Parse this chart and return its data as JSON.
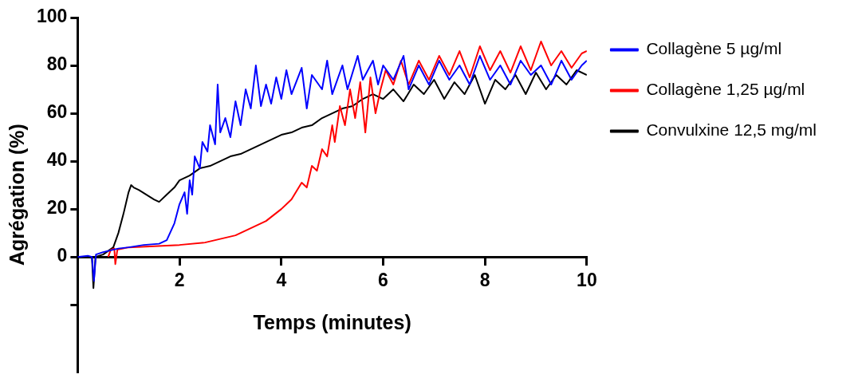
{
  "chart_data": {
    "type": "line",
    "xlabel": "Temps (minutes)",
    "ylabel": "Agrégation (%)",
    "xlim": [
      0,
      10
    ],
    "xticks": [
      2,
      4,
      6,
      8,
      10
    ],
    "ylim": [
      -48,
      100
    ],
    "yticks": [
      {
        "value": -20,
        "label": null
      },
      0,
      20,
      40,
      60,
      80,
      100
    ],
    "grid": false,
    "legend": "top right",
    "marker": "none",
    "line_style": "solid",
    "series": [
      {
        "name": "Collagène 5 µg/ml",
        "color": "#0000ff",
        "x": [
          0,
          0.2,
          0.28,
          0.32,
          0.36,
          0.5,
          0.8,
          1.0,
          1.3,
          1.6,
          1.75,
          1.9,
          2.0,
          2.1,
          2.15,
          2.2,
          2.25,
          2.3,
          2.4,
          2.45,
          2.55,
          2.6,
          2.7,
          2.75,
          2.8,
          2.9,
          3.0,
          3.1,
          3.2,
          3.3,
          3.4,
          3.5,
          3.6,
          3.7,
          3.8,
          3.9,
          4.0,
          4.1,
          4.2,
          4.4,
          4.5,
          4.6,
          4.8,
          4.9,
          5.0,
          5.2,
          5.3,
          5.5,
          5.6,
          5.8,
          5.9,
          6.0,
          6.2,
          6.4,
          6.5,
          6.7,
          6.9,
          7.1,
          7.3,
          7.5,
          7.7,
          7.9,
          8.1,
          8.3,
          8.5,
          8.7,
          8.9,
          9.1,
          9.3,
          9.5,
          9.7,
          9.9,
          10.0
        ],
        "values": [
          0,
          0.5,
          0,
          -10,
          1,
          2,
          3.5,
          4,
          5,
          5.5,
          7,
          14,
          22,
          27,
          18,
          32,
          26,
          42,
          37,
          48,
          44,
          55,
          47,
          72,
          52,
          58,
          50,
          65,
          55,
          70,
          62,
          80,
          63,
          72,
          64,
          75,
          66,
          78,
          68,
          79,
          62,
          76,
          70,
          82,
          68,
          80,
          70,
          84,
          74,
          82,
          72,
          80,
          74,
          84,
          70,
          80,
          72,
          82,
          74,
          80,
          72,
          84,
          74,
          80,
          72,
          82,
          76,
          80,
          72,
          82,
          74,
          80,
          82
        ]
      },
      {
        "name": "Collagène 1,25 µg/ml",
        "color": "#ff0000",
        "x": [
          0.6,
          0.65,
          0.72,
          0.74,
          0.78,
          1.0,
          1.5,
          2.0,
          2.5,
          2.8,
          3.1,
          3.4,
          3.7,
          4.0,
          4.2,
          4.4,
          4.5,
          4.6,
          4.7,
          4.8,
          4.9,
          5.0,
          5.05,
          5.15,
          5.25,
          5.35,
          5.45,
          5.55,
          5.65,
          5.75,
          5.85,
          5.95,
          6.05,
          6.2,
          6.35,
          6.5,
          6.7,
          6.9,
          7.1,
          7.3,
          7.5,
          7.7,
          7.9,
          8.1,
          8.3,
          8.5,
          8.7,
          8.9,
          9.1,
          9.3,
          9.5,
          9.7,
          9.9,
          10.0
        ],
        "values": [
          0,
          3,
          3.5,
          -3,
          3,
          4,
          4.5,
          5,
          6,
          7.5,
          9,
          12,
          15,
          20,
          24,
          31,
          29,
          38,
          36,
          45,
          42,
          55,
          48,
          63,
          55,
          70,
          58,
          73,
          52,
          75,
          60,
          70,
          78,
          72,
          82,
          72,
          82,
          74,
          84,
          76,
          86,
          75,
          88,
          78,
          86,
          77,
          88,
          78,
          90,
          80,
          86,
          79,
          85,
          86
        ]
      },
      {
        "name": "Convulxine 12,5 mg/ml",
        "color": "#000000",
        "x": [
          0,
          0.28,
          0.31,
          0.35,
          0.5,
          0.7,
          0.8,
          0.9,
          1.0,
          1.05,
          1.1,
          1.2,
          1.35,
          1.5,
          1.6,
          1.75,
          1.9,
          2.0,
          2.2,
          2.4,
          2.6,
          2.8,
          3.0,
          3.2,
          3.4,
          3.6,
          3.8,
          4.0,
          4.2,
          4.4,
          4.6,
          4.8,
          5.0,
          5.2,
          5.4,
          5.6,
          5.8,
          6.0,
          6.2,
          6.4,
          6.6,
          6.8,
          7.0,
          7.2,
          7.4,
          7.6,
          7.8,
          8.0,
          8.2,
          8.4,
          8.6,
          8.8,
          9.0,
          9.2,
          9.4,
          9.6,
          9.8,
          10.0
        ],
        "values": [
          0,
          0,
          -13,
          0,
          1,
          4,
          10,
          18,
          27,
          30,
          29,
          28,
          26,
          24,
          23,
          26,
          29,
          32,
          34,
          37,
          38,
          40,
          42,
          43,
          45,
          47,
          49,
          51,
          52,
          54,
          55,
          58,
          60,
          62,
          63,
          66,
          68,
          66,
          70,
          65,
          72,
          68,
          74,
          66,
          73,
          68,
          76,
          64,
          74,
          70,
          76,
          68,
          77,
          70,
          76,
          72,
          78,
          76
        ]
      }
    ]
  }
}
